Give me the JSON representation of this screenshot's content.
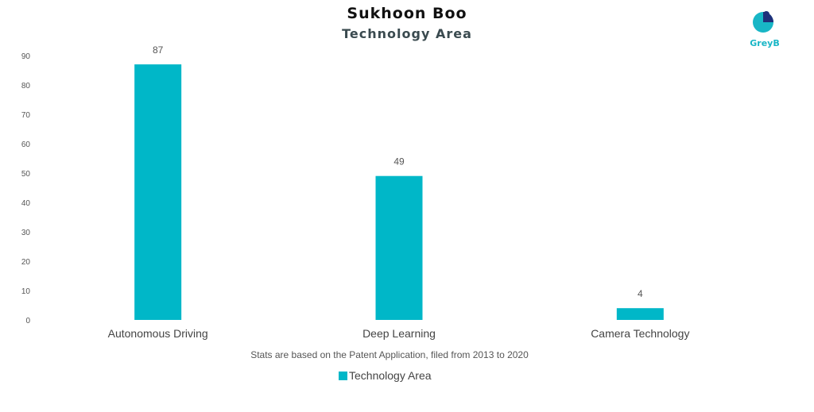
{
  "title": "Sukhoon Boo",
  "subtitle": "Technology Area",
  "caption": "Stats are based on the Patent Application, filed from 2013 to 2020",
  "logo": {
    "text": "GreyB"
  },
  "colors": {
    "bar": "#00b7c8",
    "axis_text": "#555555"
  },
  "chart_data": {
    "type": "bar",
    "categories": [
      "Autonomous Driving",
      "Deep Learning",
      "Camera Technology"
    ],
    "series": [
      {
        "name": "Technology Area",
        "values": [
          87,
          49,
          4
        ]
      }
    ],
    "ylim": [
      0,
      90
    ],
    "yticks": [
      0,
      10,
      20,
      30,
      40,
      50,
      60,
      70,
      80,
      90
    ],
    "grid": false,
    "legend": "bottom"
  }
}
